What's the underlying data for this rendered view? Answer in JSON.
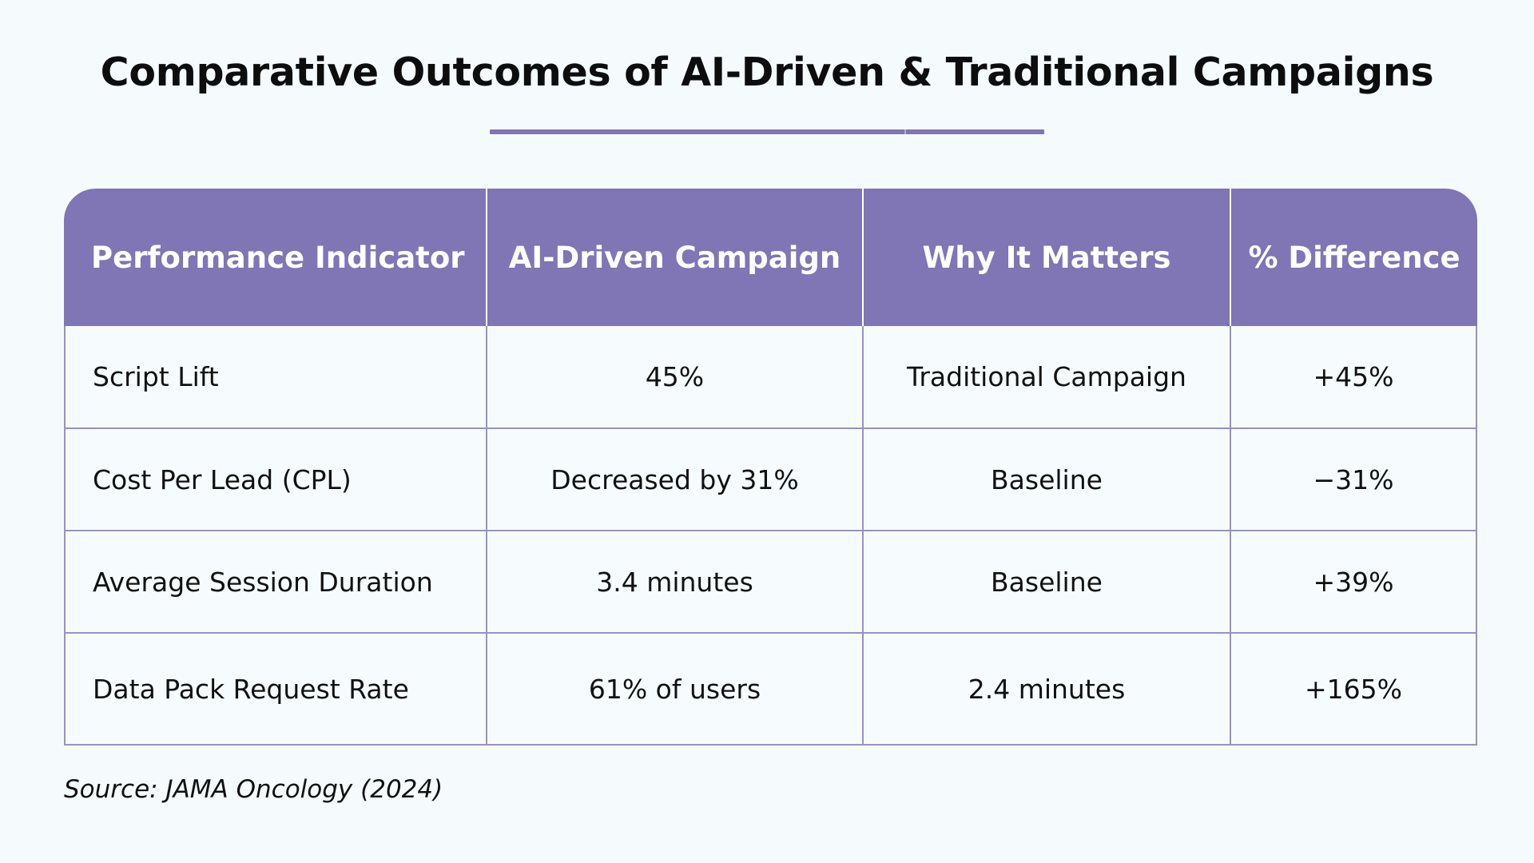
{
  "title": "Comparative Outcomes of AI-Driven & Traditional Campaigns",
  "colors": {
    "accent": "#8075b5",
    "background": "#f5fbfd",
    "border": "#9a91c6"
  },
  "chart_data": {
    "type": "table",
    "title": "Comparative Outcomes of AI-Driven & Traditional Campaigns",
    "columns": [
      "Performance Indicator",
      "AI-Driven Campaign",
      "Why It Matters",
      "% Difference"
    ],
    "rows": [
      [
        "Script Lift",
        "45%",
        "Traditional Campaign",
        "+45%"
      ],
      [
        "Cost Per Lead (CPL)",
        "Decreased by 31%",
        "Baseline",
        "−31%"
      ],
      [
        "Average Session Duration",
        "3.4 minutes",
        "Baseline",
        "+39%"
      ],
      [
        "Data Pack Request Rate",
        "61% of users",
        "2.4 minutes",
        "+165%"
      ]
    ]
  },
  "source": "Source: JAMA Oncology (2024)"
}
